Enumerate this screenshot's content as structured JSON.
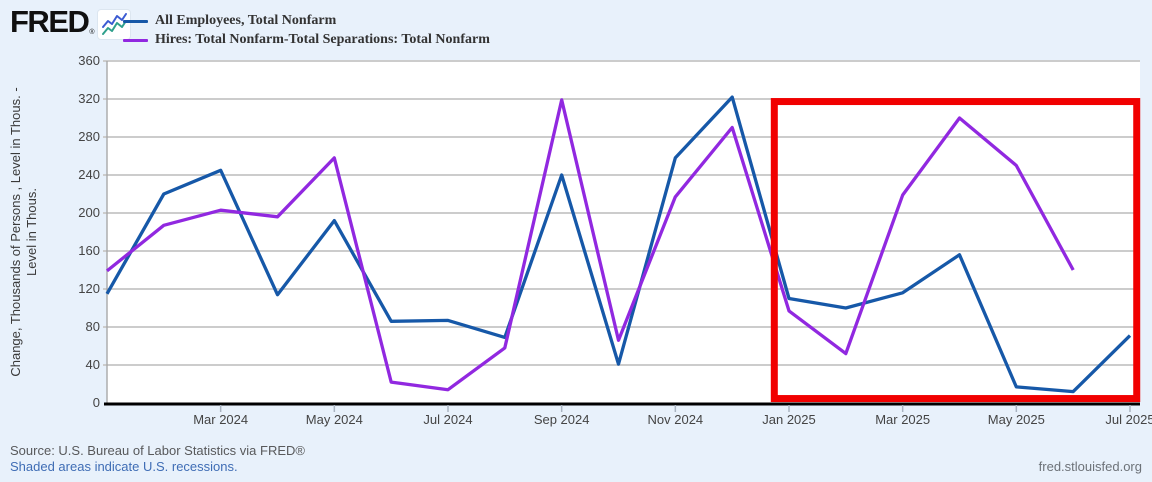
{
  "header": {
    "logo_text": "FRED",
    "logo_registered": "®"
  },
  "footer": {
    "source": "Source: U.S. Bureau of Labor Statistics via FRED®",
    "recessions_note": "Shaded areas indicate U.S. recessions.",
    "site": "fred.stlouisfed.org"
  },
  "chart_data": {
    "type": "line",
    "title": "",
    "xlabel": "",
    "ylabel_line1": "Change, Thousands of Persons , Level in Thous. -",
    "ylabel_line2": "Level in Thous.",
    "ylim": [
      0,
      360
    ],
    "y_ticks": [
      0,
      40,
      80,
      120,
      160,
      200,
      240,
      280,
      320,
      360
    ],
    "grid": true,
    "legend_position": "top-left",
    "months": [
      "Jan 2024",
      "Feb 2024",
      "Mar 2024",
      "Apr 2024",
      "May 2024",
      "Jun 2024",
      "Jul 2024",
      "Aug 2024",
      "Sep 2024",
      "Oct 2024",
      "Nov 2024",
      "Dec 2024",
      "Jan 2025",
      "Feb 2025",
      "Mar 2025",
      "Apr 2025",
      "May 2025",
      "Jun 2025",
      "Jul 2025"
    ],
    "x_ticks": [
      {
        "label": "Mar 2024",
        "month_index": 2
      },
      {
        "label": "May 2024",
        "month_index": 4
      },
      {
        "label": "Jul 2024",
        "month_index": 6
      },
      {
        "label": "Sep 2024",
        "month_index": 8
      },
      {
        "label": "Nov 2024",
        "month_index": 10
      },
      {
        "label": "Jan 2025",
        "month_index": 12
      },
      {
        "label": "Mar 2025",
        "month_index": 14
      },
      {
        "label": "May 2025",
        "month_index": 16
      },
      {
        "label": "Jul 2025",
        "month_index": 18
      }
    ],
    "series": [
      {
        "name": "All Employees, Total Nonfarm",
        "color": "#1658a8",
        "values": [
          115,
          220,
          245,
          114,
          192,
          86,
          87,
          69,
          240,
          41,
          258,
          322,
          110,
          100,
          116,
          156,
          17,
          12,
          71
        ]
      },
      {
        "name": "Hires: Total Nonfarm-Total Separations: Total Nonfarm",
        "color": "#9128e0",
        "values": [
          139,
          187,
          203,
          196,
          258,
          22,
          14,
          58,
          319,
          66,
          217,
          290,
          97,
          52,
          219,
          300,
          250,
          140,
          null
        ]
      }
    ],
    "annotation": {
      "shape": "rectangle",
      "color": "#f10000",
      "stroke_width": 7,
      "x0_month_index": 11.68,
      "x1_month_index": 18.18,
      "y0_value": 1,
      "y1_value": 321
    }
  }
}
